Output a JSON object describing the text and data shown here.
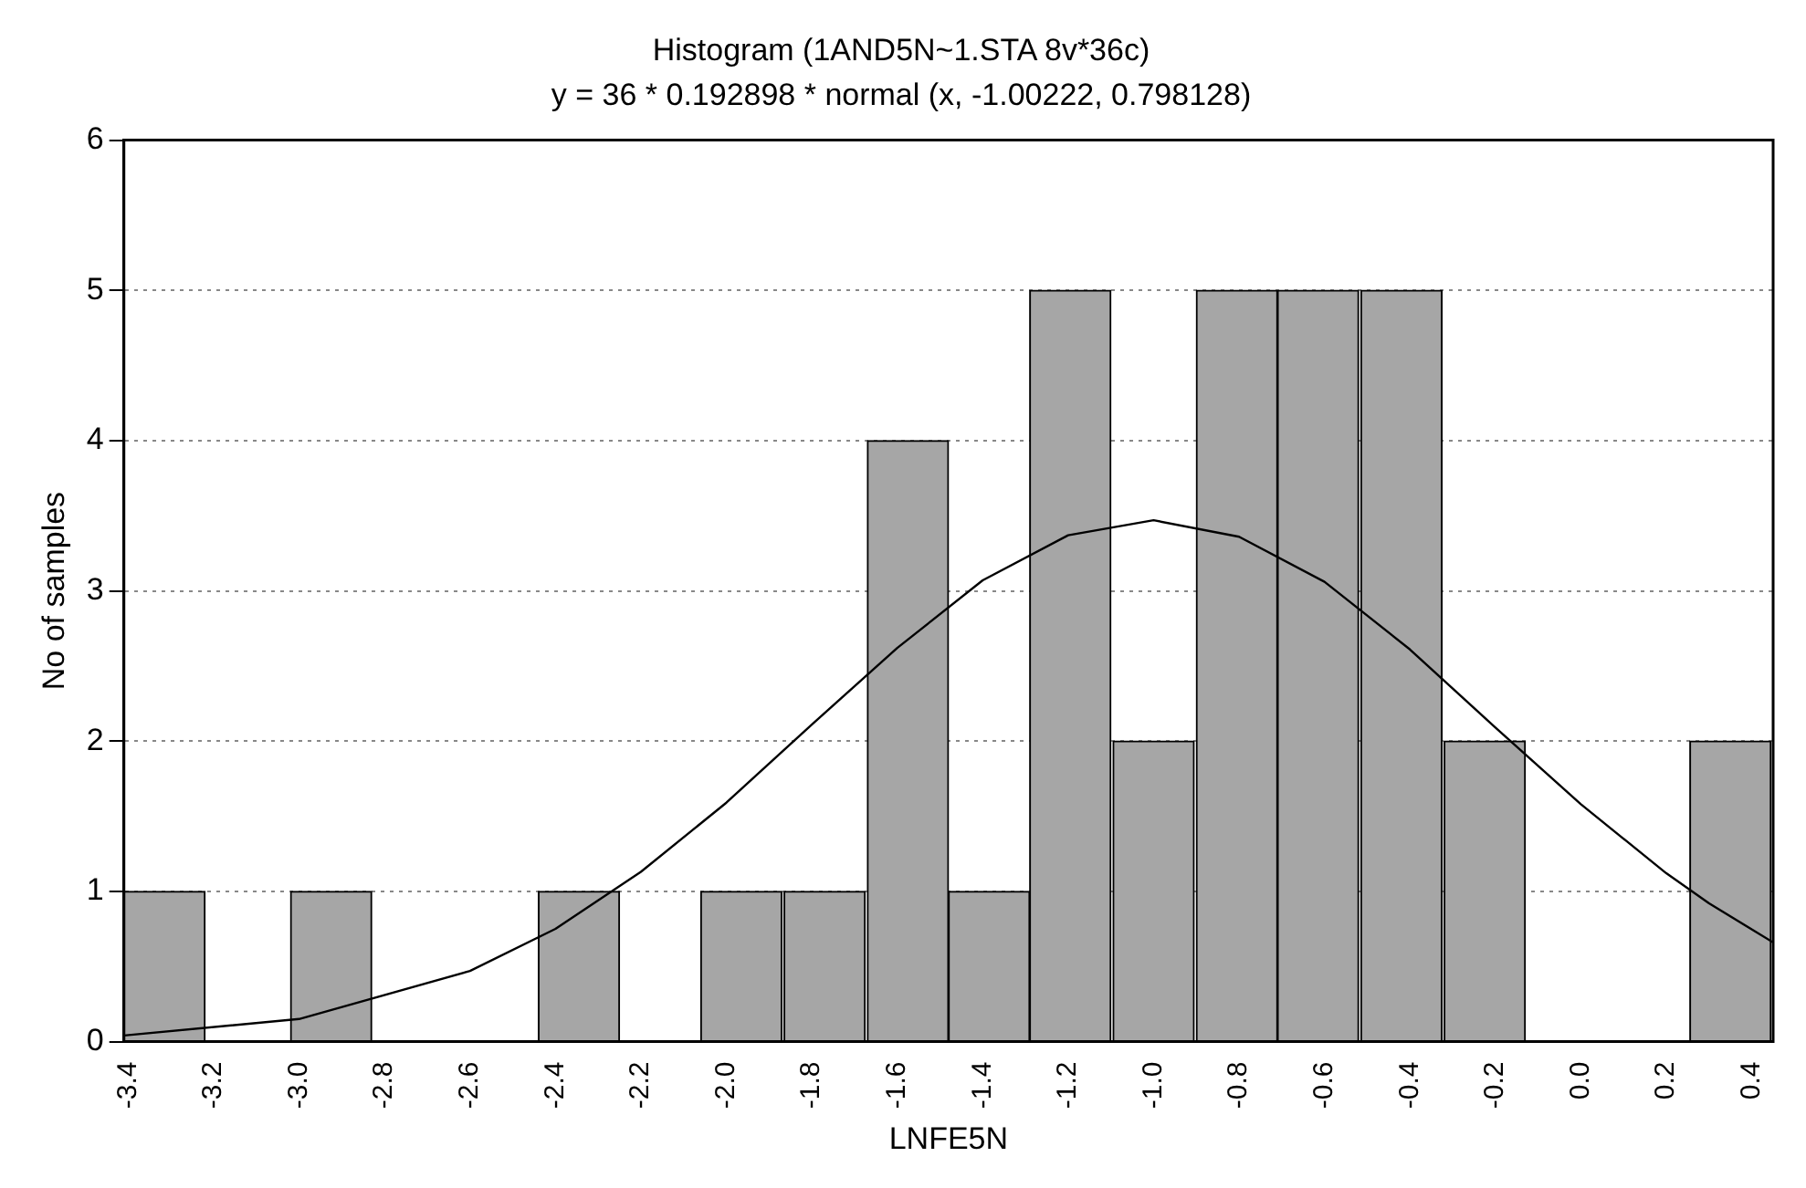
{
  "chart_data": {
    "type": "histogram",
    "title": "Histogram (1AND5N~1.STA 8v*36c)",
    "subtitle": "y = 36 * 0.192898 * normal (x, -1.00222, 0.798128)",
    "xlabel": "LNFE5N",
    "ylabel": "No of samples",
    "bins": [
      -3.41,
      -3.22,
      -3.02,
      -2.83,
      -2.64,
      -2.44,
      -2.25,
      -2.06,
      -1.87,
      -1.67,
      -1.48,
      -1.29,
      -1.1,
      -0.9,
      -0.71,
      -0.52,
      -0.32,
      -0.13,
      0.06,
      0.25,
      0.45
    ],
    "values": [
      1,
      0,
      1,
      0,
      0,
      1,
      0,
      1,
      1,
      4,
      1,
      5,
      2,
      5,
      5,
      5,
      2,
      0,
      0,
      2
    ],
    "color": "#a6a6a6",
    "series": [
      {
        "type": "line",
        "color": "#000000",
        "x": [
          -3.41,
          -3.0,
          -2.6,
          -2.4,
          -2.2,
          -2.0,
          -1.8,
          -1.6,
          -1.4,
          -1.2,
          -1.0,
          -0.8,
          -0.6,
          -0.4,
          -0.2,
          0.0,
          0.2,
          0.3,
          0.45
        ],
        "values": [
          0.04,
          0.15,
          0.47,
          0.75,
          1.13,
          1.59,
          2.11,
          2.62,
          3.07,
          3.37,
          3.47,
          3.36,
          3.06,
          2.61,
          2.09,
          1.58,
          1.12,
          0.92,
          0.66
        ]
      }
    ],
    "xlim": [
      -3.41,
      0.45
    ],
    "xticks": [
      -3.4,
      -3.2,
      {
        "value": -3.0,
        "label": "-3.0"
      },
      -2.8,
      -2.6,
      -2.4,
      -2.2,
      {
        "value": -2.0,
        "label": "-2.0"
      },
      -1.8,
      -1.6,
      -1.4,
      -1.2,
      {
        "value": -1.0,
        "label": "-1.0"
      },
      -0.8,
      -0.6,
      -0.4,
      -0.2,
      {
        "value": 0,
        "label": "0.0"
      },
      0.2,
      0.4
    ],
    "ylim": [
      0,
      6
    ],
    "yticks": [
      0,
      1,
      2,
      3,
      4,
      5,
      6
    ],
    "grid": "y",
    "legend": false,
    "marker": "none",
    "line_style": "solid"
  }
}
